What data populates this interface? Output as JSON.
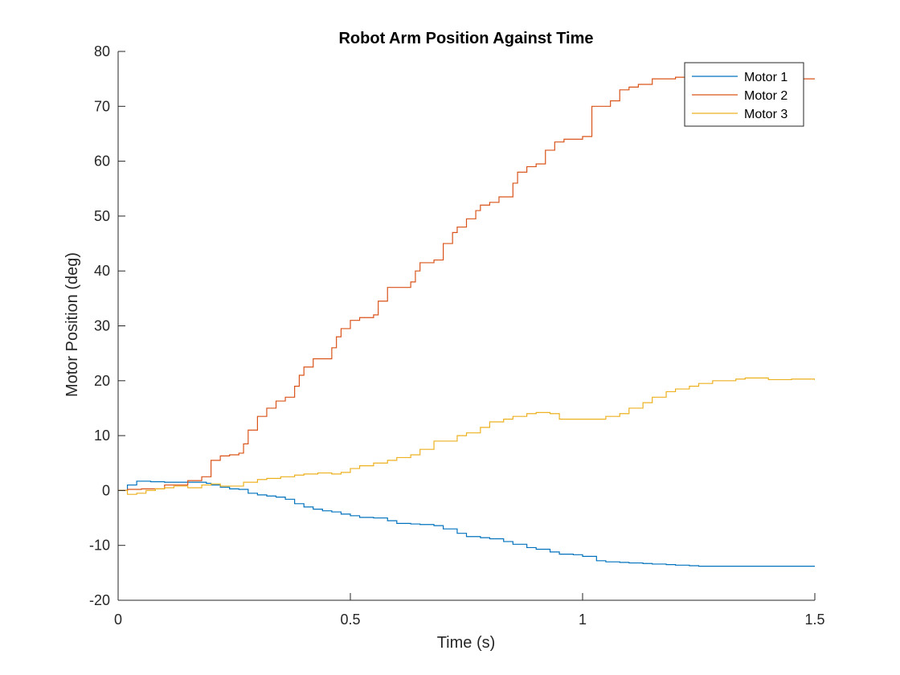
{
  "chart_data": {
    "type": "line",
    "title": "Robot Arm Position Against Time",
    "xlabel": "Time (s)",
    "ylabel": "Motor Position (deg)",
    "xlim": [
      0,
      1.5
    ],
    "ylim": [
      -20,
      80
    ],
    "xticks": [
      0,
      0.5,
      1,
      1.5
    ],
    "xtick_labels": [
      "0",
      "0.5",
      "1",
      "1.5"
    ],
    "yticks": [
      -20,
      -10,
      0,
      10,
      20,
      30,
      40,
      50,
      60,
      70,
      80
    ],
    "ytick_labels": [
      "-20",
      "-10",
      "0",
      "10",
      "20",
      "30",
      "40",
      "50",
      "60",
      "70",
      "80"
    ],
    "grid": false,
    "legend_position": "top-right",
    "series": [
      {
        "name": "Motor 1",
        "color": "#0072BD",
        "x": [
          0,
          0.02,
          0.04,
          0.05,
          0.07,
          0.1,
          0.13,
          0.16,
          0.19,
          0.2,
          0.22,
          0.24,
          0.26,
          0.28,
          0.3,
          0.32,
          0.34,
          0.36,
          0.38,
          0.4,
          0.42,
          0.44,
          0.46,
          0.48,
          0.5,
          0.52,
          0.55,
          0.58,
          0.6,
          0.63,
          0.65,
          0.68,
          0.7,
          0.73,
          0.75,
          0.78,
          0.8,
          0.83,
          0.85,
          0.88,
          0.9,
          0.93,
          0.95,
          0.98,
          1.0,
          1.03,
          1.05,
          1.08,
          1.1,
          1.13,
          1.15,
          1.18,
          1.2,
          1.23,
          1.25,
          1.3,
          1.35,
          1.4,
          1.45,
          1.5
        ],
        "y": [
          0,
          1.0,
          1.7,
          1.7,
          1.6,
          1.5,
          1.5,
          1.5,
          1.3,
          1.0,
          0.6,
          0.3,
          0.2,
          -0.5,
          -0.8,
          -1.0,
          -1.2,
          -1.6,
          -2.4,
          -3.0,
          -3.4,
          -3.7,
          -3.9,
          -4.3,
          -4.6,
          -4.9,
          -5.0,
          -5.5,
          -6.0,
          -6.1,
          -6.2,
          -6.4,
          -7.0,
          -7.8,
          -8.4,
          -8.6,
          -8.8,
          -9.3,
          -9.8,
          -10.4,
          -10.7,
          -11.2,
          -11.6,
          -11.7,
          -12.0,
          -12.8,
          -13.0,
          -13.1,
          -13.2,
          -13.3,
          -13.4,
          -13.5,
          -13.6,
          -13.7,
          -13.8,
          -13.8,
          -13.8,
          -13.8,
          -13.8,
          -13.8
        ]
      },
      {
        "name": "Motor 2",
        "color": "#D95319",
        "x": [
          0,
          0.02,
          0.05,
          0.1,
          0.15,
          0.18,
          0.2,
          0.22,
          0.24,
          0.26,
          0.27,
          0.28,
          0.3,
          0.32,
          0.34,
          0.36,
          0.38,
          0.39,
          0.4,
          0.42,
          0.44,
          0.46,
          0.47,
          0.48,
          0.5,
          0.52,
          0.55,
          0.56,
          0.58,
          0.6,
          0.63,
          0.64,
          0.65,
          0.68,
          0.7,
          0.72,
          0.73,
          0.75,
          0.77,
          0.78,
          0.8,
          0.82,
          0.85,
          0.86,
          0.88,
          0.9,
          0.92,
          0.94,
          0.96,
          1.0,
          1.02,
          1.04,
          1.06,
          1.08,
          1.1,
          1.12,
          1.15,
          1.2,
          1.25,
          1.3,
          1.35,
          1.4,
          1.45,
          1.5
        ],
        "y": [
          0,
          0.2,
          0.3,
          1.0,
          1.8,
          2.5,
          5.5,
          6.3,
          6.5,
          6.8,
          8.5,
          11.0,
          13.5,
          15.0,
          16.3,
          17.0,
          19.0,
          21.0,
          22.5,
          24.0,
          24.0,
          26.0,
          28.0,
          29.5,
          31.0,
          31.5,
          32.0,
          34.5,
          37.0,
          37.0,
          38.0,
          40.0,
          41.5,
          42.0,
          45.0,
          47.0,
          48.0,
          49.5,
          51.0,
          52.0,
          52.5,
          53.5,
          56.0,
          58.0,
          59.0,
          59.5,
          62.0,
          63.5,
          64.0,
          64.5,
          70.0,
          70.0,
          71.0,
          73.0,
          73.5,
          74.0,
          75.0,
          75.3,
          75.3,
          75.2,
          75.1,
          75.0,
          75.0,
          75.0
        ]
      },
      {
        "name": "Motor 3",
        "color": "#EDB120",
        "x": [
          0,
          0.02,
          0.04,
          0.06,
          0.08,
          0.1,
          0.12,
          0.15,
          0.18,
          0.2,
          0.22,
          0.25,
          0.27,
          0.3,
          0.32,
          0.35,
          0.38,
          0.4,
          0.43,
          0.46,
          0.48,
          0.5,
          0.52,
          0.55,
          0.58,
          0.6,
          0.63,
          0.65,
          0.68,
          0.7,
          0.73,
          0.75,
          0.78,
          0.8,
          0.83,
          0.85,
          0.88,
          0.9,
          0.93,
          0.95,
          0.98,
          1.0,
          1.03,
          1.05,
          1.08,
          1.1,
          1.13,
          1.15,
          1.18,
          1.2,
          1.23,
          1.25,
          1.28,
          1.3,
          1.33,
          1.35,
          1.4,
          1.45,
          1.5
        ],
        "y": [
          0,
          -0.7,
          -0.5,
          0.0,
          0.3,
          0.5,
          0.8,
          0.5,
          1.0,
          1.2,
          0.8,
          0.8,
          1.5,
          2.0,
          2.2,
          2.5,
          2.8,
          3.0,
          3.2,
          3.0,
          3.3,
          4.0,
          4.5,
          5.0,
          5.5,
          6.0,
          6.5,
          7.5,
          9.0,
          9.0,
          10.0,
          10.5,
          11.5,
          12.5,
          13.0,
          13.5,
          14.0,
          14.2,
          14.0,
          13.0,
          13.0,
          13.0,
          13.0,
          13.5,
          14.0,
          15.0,
          16.0,
          17.0,
          18.0,
          18.5,
          19.0,
          19.5,
          20.0,
          20.0,
          20.3,
          20.5,
          20.2,
          20.3,
          20.1
        ]
      }
    ]
  }
}
